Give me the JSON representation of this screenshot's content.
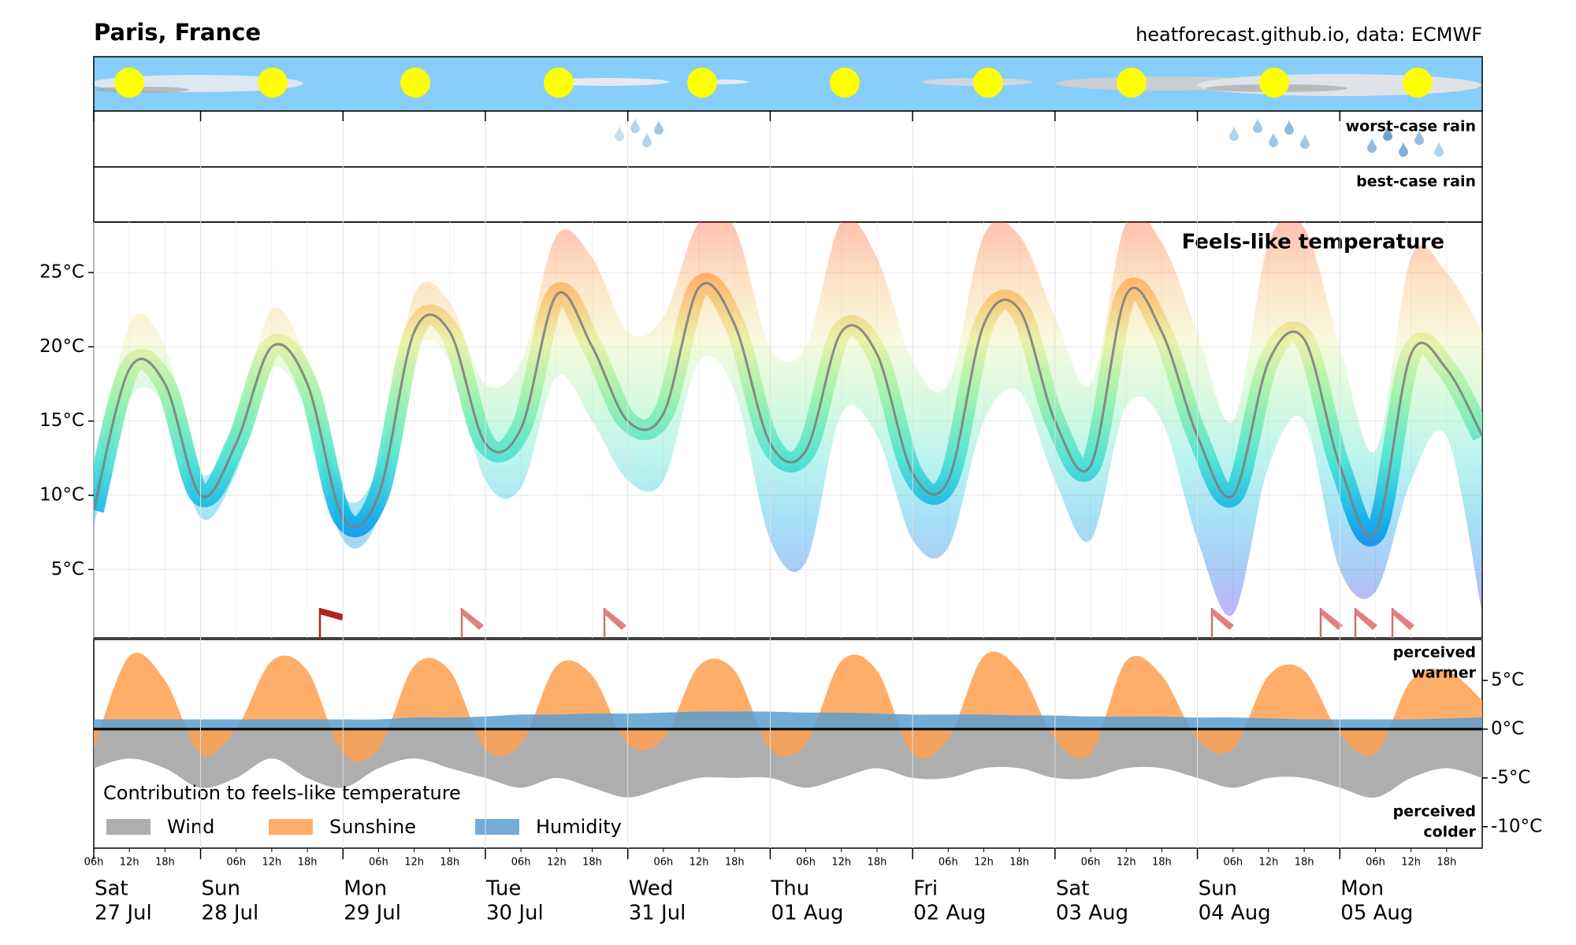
{
  "header": {
    "title": "Paris, France",
    "source": "heatforecast.github.io, data: ECMWF"
  },
  "rain": {
    "worst": "worst-case rain",
    "best": "best-case rain"
  },
  "chart_data": [
    {
      "type": "line",
      "title": "Feels-like temperature",
      "x": [
        "27 Jul 06h",
        "27 Jul 12h",
        "27 Jul 18h",
        "28 Jul 00h",
        "28 Jul 06h",
        "28 Jul 12h",
        "28 Jul 18h",
        "29 Jul 00h",
        "29 Jul 06h",
        "29 Jul 12h",
        "29 Jul 18h",
        "30 Jul 00h",
        "30 Jul 06h",
        "30 Jul 12h",
        "30 Jul 18h",
        "31 Jul 00h",
        "31 Jul 06h",
        "31 Jul 12h",
        "31 Jul 18h",
        "01 Aug 00h",
        "01 Aug 06h",
        "01 Aug 12h",
        "01 Aug 18h",
        "02 Aug 00h",
        "02 Aug 06h",
        "02 Aug 12h",
        "02 Aug 18h",
        "03 Aug 00h",
        "03 Aug 06h",
        "03 Aug 12h",
        "03 Aug 18h",
        "04 Aug 00h",
        "04 Aug 06h",
        "04 Aug 12h",
        "04 Aug 18h",
        "05 Aug 00h",
        "05 Aug 06h",
        "05 Aug 12h",
        "05 Aug 18h",
        "06 Aug 00h"
      ],
      "xlim": [
        "27 Jul 06h",
        "06 Aug 00h"
      ],
      "series": [
        {
          "color": "#808080",
          "values": [
            9,
            18.5,
            17.5,
            10,
            13.5,
            20,
            17.5,
            8.5,
            10,
            21,
            21,
            13.5,
            14.5,
            23.5,
            20,
            15,
            15.5,
            24,
            21.5,
            13.5,
            13,
            21,
            19.5,
            11.5,
            11,
            21.5,
            22.5,
            15,
            12,
            23.5,
            21,
            14,
            10,
            19,
            20.5,
            12,
            7.5,
            19.5,
            18.5,
            14
          ]
        }
      ],
      "band": {
        "low": [
          8,
          16.5,
          16,
          8.5,
          11.5,
          18.5,
          15.5,
          7,
          8.5,
          19.5,
          19,
          11,
          10.5,
          18,
          15,
          11,
          11,
          19,
          17,
          7,
          5.5,
          15.5,
          14,
          7,
          6.5,
          15,
          17,
          11,
          7,
          16,
          15,
          7,
          2,
          12,
          15,
          5,
          3.5,
          11,
          14,
          2
        ],
        "high": [
          10,
          21.5,
          20,
          11.5,
          15,
          22.5,
          19,
          10,
          12,
          23.5,
          23,
          17.5,
          19,
          27.5,
          26,
          21,
          22,
          28.4,
          28,
          20,
          20,
          28.4,
          26,
          19,
          17.5,
          27.5,
          27.5,
          22,
          17.5,
          28.4,
          27,
          21,
          15,
          27,
          28,
          20,
          13,
          26,
          25,
          21
        ]
      },
      "colormap": [
        "#8000ff",
        "#1060e0",
        "#00a8e8",
        "#40e0d0",
        "#90f0a8",
        "#e8f0a0",
        "#ffb060",
        "#ff5020"
      ],
      "ylim": [
        0.4,
        28.4
      ],
      "yticks": [
        {
          "value": 5,
          "label": "5°C"
        },
        {
          "value": 10,
          "label": "10°C"
        },
        {
          "value": 15,
          "label": "15°C"
        },
        {
          "value": 20,
          "label": "20°C"
        },
        {
          "value": 25,
          "label": "25°C"
        }
      ],
      "grid": true
    },
    {
      "type": "area",
      "legend_title": "Contribution to feels-like temperature",
      "legend": "lower left",
      "x": [
        "27 Jul 06h",
        "27 Jul 12h",
        "27 Jul 18h",
        "28 Jul 00h",
        "28 Jul 06h",
        "28 Jul 12h",
        "28 Jul 18h",
        "29 Jul 00h",
        "29 Jul 06h",
        "29 Jul 12h",
        "29 Jul 18h",
        "30 Jul 00h",
        "30 Jul 06h",
        "30 Jul 12h",
        "30 Jul 18h",
        "31 Jul 00h",
        "31 Jul 06h",
        "31 Jul 12h",
        "31 Jul 18h",
        "01 Aug 00h",
        "01 Aug 06h",
        "01 Aug 12h",
        "01 Aug 18h",
        "02 Aug 00h",
        "02 Aug 06h",
        "02 Aug 12h",
        "02 Aug 18h",
        "03 Aug 00h",
        "03 Aug 06h",
        "03 Aug 12h",
        "03 Aug 18h",
        "04 Aug 00h",
        "04 Aug 06h",
        "04 Aug 12h",
        "04 Aug 18h",
        "05 Aug 00h",
        "05 Aug 06h",
        "05 Aug 12h",
        "05 Aug 18h",
        "06 Aug 00h"
      ],
      "series": [
        {
          "name": "Wind",
          "color": "#a0a0a0",
          "values": [
            -4,
            -3,
            -4,
            -6,
            -5,
            -3,
            -5,
            -6,
            -4,
            -3,
            -4,
            -5,
            -6,
            -5,
            -6,
            -7,
            -6,
            -5,
            -5,
            -5,
            -6,
            -5,
            -4,
            -5,
            -5,
            -4,
            -4,
            -5,
            -5,
            -4,
            -4,
            -5,
            -6,
            -5,
            -5,
            -6,
            -7,
            -5,
            -4,
            -5
          ]
        },
        {
          "name": "Sunshine",
          "color": "#ffa050",
          "values": [
            -2,
            7.5,
            5,
            -2.5,
            0,
            7,
            6,
            -2.5,
            -2,
            6.5,
            6,
            -2,
            -1.5,
            6.5,
            5.5,
            -1.5,
            -1,
            6.5,
            6,
            -2,
            -1.5,
            7,
            6,
            -2.5,
            -1,
            7.5,
            6,
            -1,
            -2.5,
            7,
            5.5,
            -1,
            -2,
            5.5,
            6,
            -0.5,
            -2.5,
            5,
            6,
            3
          ]
        },
        {
          "name": "Humidity",
          "color": "#5a9ed0",
          "values": [
            1,
            1,
            1,
            1,
            1,
            1,
            1,
            1,
            1,
            1.2,
            1.2,
            1.3,
            1.5,
            1.5,
            1.6,
            1.6,
            1.7,
            1.8,
            1.8,
            1.8,
            1.7,
            1.7,
            1.6,
            1.5,
            1.5,
            1.5,
            1.4,
            1.4,
            1.3,
            1.3,
            1.3,
            1.2,
            1.2,
            1.1,
            1,
            1,
            1,
            1,
            1.1,
            1.2
          ]
        }
      ],
      "ylim": [
        -12.2,
        9.2
      ],
      "yticks": [
        {
          "value": -10,
          "label": "-10°C"
        },
        {
          "value": -5,
          "label": "-5°C"
        },
        {
          "value": 0,
          "label": "0°C"
        },
        {
          "value": 5,
          "label": "5°C"
        }
      ],
      "warmer": [
        "perceived",
        "warmer"
      ],
      "colder": [
        "perceived",
        "colder"
      ],
      "xticks": [
        {
          "value": "27 Jul 06h",
          "label": "06h"
        },
        {
          "value": "27 Jul 12h",
          "label": "12h"
        },
        {
          "value": "27 Jul 18h",
          "label": "18h"
        },
        {
          "value": "28 Jul 06h",
          "label": "06h"
        },
        {
          "value": "28 Jul 12h",
          "label": "12h"
        },
        {
          "value": "28 Jul 18h",
          "label": "18h"
        },
        {
          "value": "29 Jul 06h",
          "label": "06h"
        },
        {
          "value": "29 Jul 12h",
          "label": "12h"
        },
        {
          "value": "29 Jul 18h",
          "label": "18h"
        },
        {
          "value": "30 Jul 06h",
          "label": "06h"
        },
        {
          "value": "30 Jul 12h",
          "label": "12h"
        },
        {
          "value": "30 Jul 18h",
          "label": "18h"
        },
        {
          "value": "31 Jul 06h",
          "label": "06h"
        },
        {
          "value": "31 Jul 12h",
          "label": "12h"
        },
        {
          "value": "31 Jul 18h",
          "label": "18h"
        },
        {
          "value": "01 Aug 06h",
          "label": "06h"
        },
        {
          "value": "01 Aug 12h",
          "label": "12h"
        },
        {
          "value": "01 Aug 18h",
          "label": "18h"
        },
        {
          "value": "02 Aug 06h",
          "label": "06h"
        },
        {
          "value": "02 Aug 12h",
          "label": "12h"
        },
        {
          "value": "02 Aug 18h",
          "label": "18h"
        },
        {
          "value": "03 Aug 06h",
          "label": "06h"
        },
        {
          "value": "03 Aug 12h",
          "label": "12h"
        },
        {
          "value": "03 Aug 18h",
          "label": "18h"
        },
        {
          "value": "04 Aug 06h",
          "label": "06h"
        },
        {
          "value": "04 Aug 12h",
          "label": "12h"
        },
        {
          "value": "04 Aug 18h",
          "label": "18h"
        },
        {
          "value": "05 Aug 06h",
          "label": "06h"
        },
        {
          "value": "05 Aug 12h",
          "label": "12h"
        },
        {
          "value": "05 Aug 18h",
          "label": "18h"
        }
      ],
      "day_labels": [
        {
          "value": "27 Jul 06h",
          "weekday": "Sat",
          "date": "27 Jul"
        },
        {
          "value": "28 Jul 00h",
          "weekday": "Sun",
          "date": "28 Jul"
        },
        {
          "value": "29 Jul 00h",
          "weekday": "Mon",
          "date": "29 Jul"
        },
        {
          "value": "30 Jul 00h",
          "weekday": "Tue",
          "date": "30 Jul"
        },
        {
          "value": "31 Jul 00h",
          "weekday": "Wed",
          "date": "31 Jul"
        },
        {
          "value": "01 Aug 00h",
          "weekday": "Thu",
          "date": "01 Aug"
        },
        {
          "value": "02 Aug 00h",
          "weekday": "Fri",
          "date": "02 Aug"
        },
        {
          "value": "03 Aug 00h",
          "weekday": "Sat",
          "date": "03 Aug"
        },
        {
          "value": "04 Aug 00h",
          "weekday": "Sun",
          "date": "04 Aug"
        },
        {
          "value": "05 Aug 00h",
          "weekday": "Mon",
          "date": "05 Aug"
        }
      ]
    }
  ]
}
